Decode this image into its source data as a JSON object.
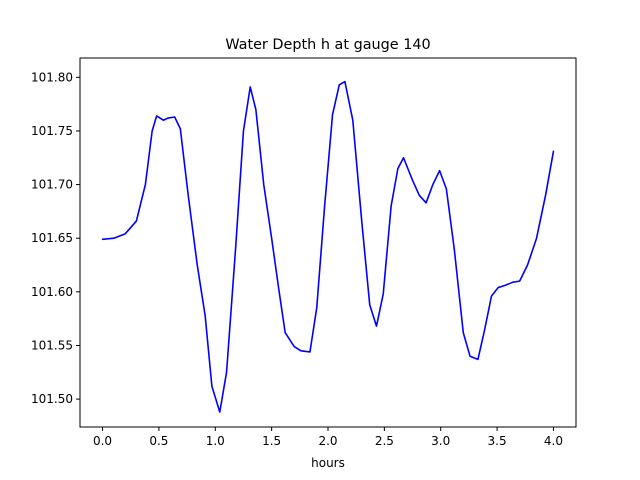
{
  "chart_data": {
    "type": "line",
    "title": "Water Depth h at gauge 140",
    "xlabel": "hours",
    "ylabel": "",
    "xlim": [
      -0.2,
      4.2
    ],
    "ylim": [
      101.474,
      101.818
    ],
    "grid": false,
    "legend": "none",
    "x_ticks": [
      0.0,
      0.5,
      1.0,
      1.5,
      2.0,
      2.5,
      3.0,
      3.5,
      4.0
    ],
    "x_tick_labels": [
      "0.0",
      "0.5",
      "1.0",
      "1.5",
      "2.0",
      "2.5",
      "3.0",
      "3.5",
      "4.0"
    ],
    "y_ticks": [
      101.5,
      101.55,
      101.6,
      101.65,
      101.7,
      101.75,
      101.8
    ],
    "y_tick_labels": [
      "101.50",
      "101.55",
      "101.60",
      "101.65",
      "101.70",
      "101.75",
      "101.80"
    ],
    "series": [
      {
        "color": "#0000ff",
        "points": [
          [
            0.0,
            101.649
          ],
          [
            0.1,
            101.65
          ],
          [
            0.2,
            101.654
          ],
          [
            0.3,
            101.666
          ],
          [
            0.38,
            101.7
          ],
          [
            0.44,
            101.75
          ],
          [
            0.48,
            101.764
          ],
          [
            0.54,
            101.76
          ],
          [
            0.58,
            101.762
          ],
          [
            0.64,
            101.763
          ],
          [
            0.69,
            101.752
          ],
          [
            0.76,
            101.69
          ],
          [
            0.84,
            101.625
          ],
          [
            0.91,
            101.578
          ],
          [
            0.97,
            101.512
          ],
          [
            1.04,
            101.488
          ],
          [
            1.1,
            101.525
          ],
          [
            1.18,
            101.64
          ],
          [
            1.25,
            101.75
          ],
          [
            1.31,
            101.791
          ],
          [
            1.36,
            101.77
          ],
          [
            1.43,
            101.7
          ],
          [
            1.5,
            101.65
          ],
          [
            1.56,
            101.605
          ],
          [
            1.62,
            101.562
          ],
          [
            1.7,
            101.549
          ],
          [
            1.76,
            101.545
          ],
          [
            1.84,
            101.544
          ],
          [
            1.9,
            101.585
          ],
          [
            1.97,
            101.68
          ],
          [
            2.04,
            101.765
          ],
          [
            2.1,
            101.793
          ],
          [
            2.15,
            101.796
          ],
          [
            2.22,
            101.76
          ],
          [
            2.3,
            101.665
          ],
          [
            2.37,
            101.588
          ],
          [
            2.43,
            101.568
          ],
          [
            2.49,
            101.598
          ],
          [
            2.56,
            101.68
          ],
          [
            2.62,
            101.715
          ],
          [
            2.67,
            101.725
          ],
          [
            2.75,
            101.704
          ],
          [
            2.81,
            101.69
          ],
          [
            2.87,
            101.683
          ],
          [
            2.93,
            101.7
          ],
          [
            2.99,
            101.713
          ],
          [
            3.05,
            101.696
          ],
          [
            3.12,
            101.64
          ],
          [
            3.2,
            101.562
          ],
          [
            3.26,
            101.54
          ],
          [
            3.33,
            101.537
          ],
          [
            3.39,
            101.565
          ],
          [
            3.45,
            101.596
          ],
          [
            3.51,
            101.604
          ],
          [
            3.57,
            101.606
          ],
          [
            3.64,
            101.609
          ],
          [
            3.7,
            101.61
          ],
          [
            3.77,
            101.625
          ],
          [
            3.85,
            101.65
          ],
          [
            3.93,
            101.69
          ],
          [
            4.0,
            101.731
          ]
        ]
      }
    ]
  }
}
